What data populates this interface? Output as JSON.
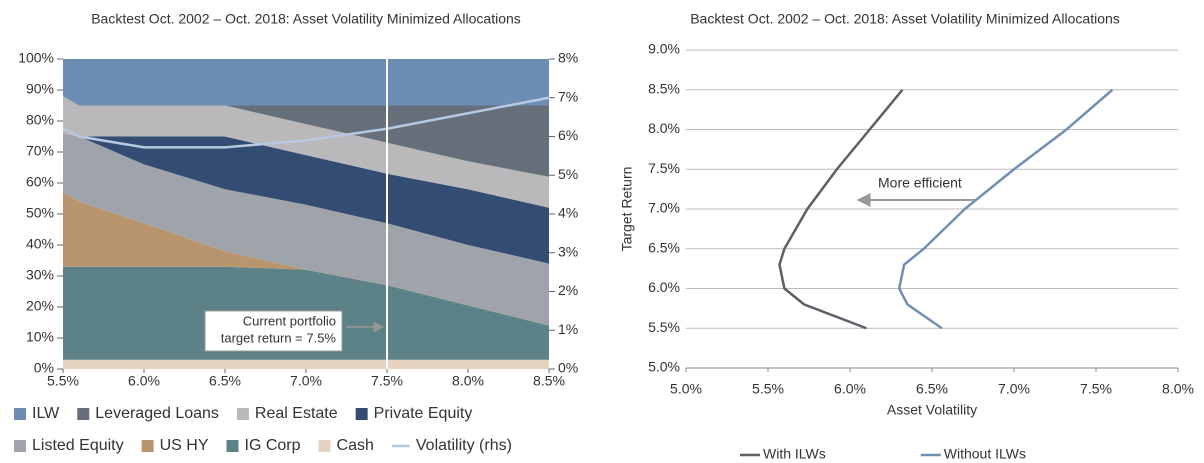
{
  "chart_data": [
    {
      "type": "area",
      "title": "Backtest Oct. 2002 – Oct. 2018: Asset Volatility Minimized Allocations",
      "x": [
        5.5,
        5.6,
        6.0,
        6.5,
        7.0,
        7.5,
        8.0,
        8.5
      ],
      "series": [
        {
          "name": "Cash",
          "color": "#e3d3c0",
          "values": [
            3,
            3,
            3,
            3,
            3,
            3,
            3,
            3
          ]
        },
        {
          "name": "IG Corp",
          "color": "#5c8288",
          "values": [
            30,
            30,
            30,
            30,
            29,
            24,
            17.5,
            11
          ]
        },
        {
          "name": "US HY",
          "color": "#b8956d",
          "values": [
            24,
            21,
            14,
            5,
            0,
            0,
            0,
            0
          ]
        },
        {
          "name": "Listed Equity",
          "color": "#9fa4ab",
          "values": [
            19,
            21,
            19,
            20,
            21,
            20,
            19.5,
            20
          ]
        },
        {
          "name": "Private Equity",
          "color": "#344c72",
          "values": [
            0,
            0,
            9,
            17,
            16,
            16,
            18,
            18
          ]
        },
        {
          "name": "Real Estate",
          "color": "#b9b9bc",
          "values": [
            12,
            10,
            10,
            10,
            10,
            10,
            9,
            10
          ]
        },
        {
          "name": "Leveraged Loans",
          "color": "#666f7a",
          "values": [
            0,
            0,
            0,
            0,
            6,
            12,
            18,
            23
          ]
        },
        {
          "name": "ILW",
          "color": "#6e8db5",
          "values": [
            12,
            15,
            15,
            15,
            15,
            15,
            15,
            15
          ]
        },
        {
          "name": "Volatility (rhs)",
          "color": "#b7c9e2",
          "axis": "y2",
          "values": [
            6.2,
            6.0,
            5.72,
            5.72,
            5.9,
            6.2,
            6.6,
            7.0
          ]
        }
      ],
      "xlim": [
        5.5,
        8.5
      ],
      "xticks": [
        {
          "value": 5.5,
          "label": "5.5%"
        },
        {
          "value": 6.0,
          "label": "6.0%"
        },
        {
          "value": 6.5,
          "label": "6.5%"
        },
        {
          "value": 7.0,
          "label": "7.0%"
        },
        {
          "value": 7.5,
          "label": "7.5%"
        },
        {
          "value": 8.0,
          "label": "8.0%"
        },
        {
          "value": 8.5,
          "label": "8.5%"
        }
      ],
      "ylim": [
        0,
        100
      ],
      "yticks": [
        {
          "value": 0,
          "label": "0%"
        },
        {
          "value": 10,
          "label": "10%"
        },
        {
          "value": 20,
          "label": "20%"
        },
        {
          "value": 30,
          "label": "30%"
        },
        {
          "value": 40,
          "label": "40%"
        },
        {
          "value": 50,
          "label": "50%"
        },
        {
          "value": 60,
          "label": "60%"
        },
        {
          "value": 70,
          "label": "70%"
        },
        {
          "value": 80,
          "label": "80%"
        },
        {
          "value": 90,
          "label": "90%"
        },
        {
          "value": 100,
          "label": "100%"
        }
      ],
      "y2lim": [
        0,
        8
      ],
      "y2ticks": [
        {
          "value": 0,
          "label": "0%"
        },
        {
          "value": 1,
          "label": "1%"
        },
        {
          "value": 2,
          "label": "2%"
        },
        {
          "value": 3,
          "label": "3%"
        },
        {
          "value": 4,
          "label": "4%"
        },
        {
          "value": 5,
          "label": "5%"
        },
        {
          "value": 6,
          "label": "6%"
        },
        {
          "value": 7,
          "label": "7%"
        },
        {
          "value": 8,
          "label": "8%"
        }
      ],
      "reference_x": 7.5,
      "annotation": [
        "Current portfolio",
        "target return = 7.5%"
      ]
    },
    {
      "type": "line",
      "title": "Backtest Oct. 2002 – Oct. 2018: Asset Volatility Minimized Allocations",
      "x_label": "Asset Volatility",
      "y_label": "Target Return",
      "series": [
        {
          "name": "With ILWs",
          "color": "#5a5f68",
          "x": [
            6.1,
            5.72,
            5.6,
            5.57,
            5.6,
            5.74,
            5.92,
            6.12,
            6.32
          ],
          "values": [
            5.5,
            5.8,
            6.0,
            6.3,
            6.5,
            7.0,
            7.5,
            8.0,
            8.5
          ]
        },
        {
          "name": "Without ILWs",
          "color": "#6f8fb3",
          "x": [
            6.56,
            6.35,
            6.3,
            6.33,
            6.45,
            6.7,
            7.0,
            7.32,
            7.6
          ],
          "values": [
            5.5,
            5.8,
            6.0,
            6.3,
            6.5,
            7.0,
            7.5,
            8.0,
            8.5
          ]
        }
      ],
      "xlim": [
        5.0,
        8.0
      ],
      "xticks": [
        {
          "value": 5.0,
          "label": "5.0%"
        },
        {
          "value": 5.5,
          "label": "5.5%"
        },
        {
          "value": 6.0,
          "label": "6.0%"
        },
        {
          "value": 6.5,
          "label": "6.5%"
        },
        {
          "value": 7.0,
          "label": "7.0%"
        },
        {
          "value": 7.5,
          "label": "7.5%"
        },
        {
          "value": 8.0,
          "label": "8.0%"
        }
      ],
      "ylim": [
        5.0,
        9.0
      ],
      "yticks": [
        {
          "value": 5.0,
          "label": "5.0%"
        },
        {
          "value": 5.5,
          "label": "5.5%"
        },
        {
          "value": 6.0,
          "label": "6.0%"
        },
        {
          "value": 6.5,
          "label": "6.5%"
        },
        {
          "value": 7.0,
          "label": "7.0%"
        },
        {
          "value": 7.5,
          "label": "7.5%"
        },
        {
          "value": 8.0,
          "label": "8.0%"
        },
        {
          "value": 8.5,
          "label": "8.5%"
        },
        {
          "value": 9.0,
          "label": "9.0%"
        }
      ],
      "grid": true,
      "annotation": "More efficient"
    }
  ]
}
